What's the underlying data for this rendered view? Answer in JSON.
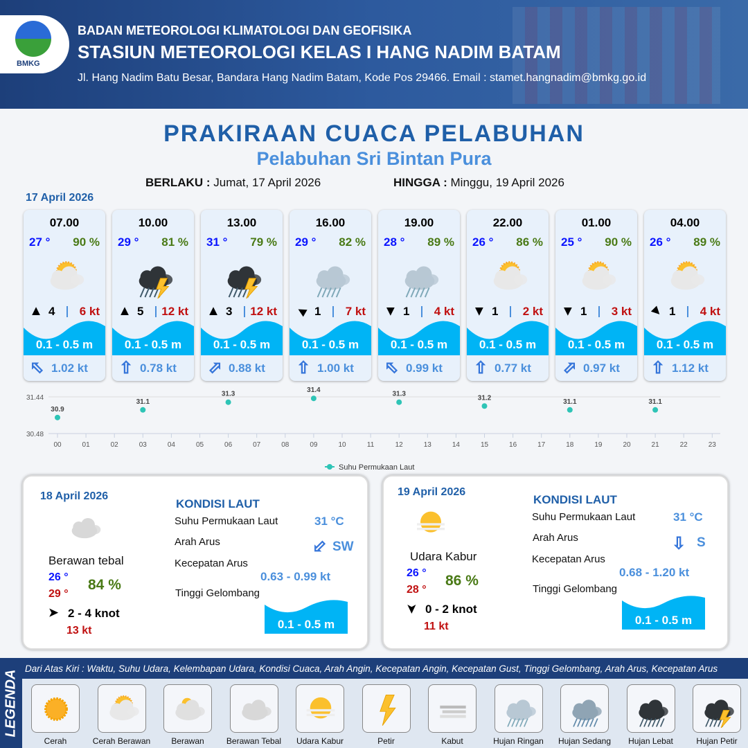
{
  "header": {
    "org": "BADAN METEOROLOGI KLIMATOLOGI DAN GEOFISIKA",
    "station": "STASIUN METEOROLOGI KELAS I HANG NADIM BATAM",
    "address": "Jl. Hang Nadim Batu Besar, Bandara Hang Nadim Batam, Kode Pos 29466. Email : stamet.hangnadim@bmkg.go.id",
    "logo_text": "BMKG"
  },
  "title": "PRAKIRAAN CUACA PELABUHAN",
  "subtitle": "Pelabuhan Sri Bintan Pura",
  "validity": {
    "from_label": "BERLAKU :",
    "from": "Jumat, 17 April 2026",
    "to_label": "HINGGA :",
    "to": "Minggu, 19 April 2026"
  },
  "day1": {
    "date": "17 April 2026",
    "cards": [
      {
        "time": "07.00",
        "temp": "27 °",
        "hum": "90 %",
        "icon": "cerah-berawan",
        "wind_dir_deg": 0,
        "wind": "4",
        "gust": "6 kt",
        "wave": "0.1 - 0.5 m",
        "cur_dir_deg": -45,
        "cur": "1.02 kt"
      },
      {
        "time": "10.00",
        "temp": "29 °",
        "hum": "81 %",
        "icon": "hujan-petir",
        "wind_dir_deg": 0,
        "wind": "5",
        "gust": "12 kt",
        "wave": "0.1 - 0.5 m",
        "cur_dir_deg": 0,
        "cur": "0.78 kt"
      },
      {
        "time": "13.00",
        "temp": "31 °",
        "hum": "79 %",
        "icon": "hujan-petir",
        "wind_dir_deg": 0,
        "wind": "3",
        "gust": "12 kt",
        "wave": "0.1 - 0.5 m",
        "cur_dir_deg": 45,
        "cur": "0.88 kt"
      },
      {
        "time": "16.00",
        "temp": "29 °",
        "hum": "82 %",
        "icon": "hujan-ringan",
        "wind_dir_deg": -60,
        "wind": "1",
        "gust": "7 kt",
        "wave": "0.1 - 0.5 m",
        "cur_dir_deg": 0,
        "cur": "1.00 kt"
      },
      {
        "time": "19.00",
        "temp": "28 °",
        "hum": "89 %",
        "icon": "hujan-ringan",
        "wind_dir_deg": 180,
        "wind": "1",
        "gust": "4 kt",
        "wave": "0.1 - 0.5 m",
        "cur_dir_deg": -45,
        "cur": "0.99 kt"
      },
      {
        "time": "22.00",
        "temp": "26 °",
        "hum": "86 %",
        "icon": "cerah-berawan",
        "wind_dir_deg": 180,
        "wind": "1",
        "gust": "2 kt",
        "wave": "0.1 - 0.5 m",
        "cur_dir_deg": 0,
        "cur": "0.77 kt"
      },
      {
        "time": "01.00",
        "temp": "25 °",
        "hum": "90 %",
        "icon": "cerah-berawan",
        "wind_dir_deg": 180,
        "wind": "1",
        "gust": "3 kt",
        "wave": "0.1 - 0.5 m",
        "cur_dir_deg": 45,
        "cur": "0.97 kt"
      },
      {
        "time": "04.00",
        "temp": "26 °",
        "hum": "89 %",
        "icon": "cerah-berawan",
        "wind_dir_deg": 135,
        "wind": "1",
        "gust": "4 kt",
        "wave": "0.1 - 0.5 m",
        "cur_dir_deg": 0,
        "cur": "1.12 kt"
      }
    ]
  },
  "chart_data": {
    "type": "scatter",
    "x": [
      "00",
      "03",
      "06",
      "09",
      "12",
      "15",
      "18",
      "21"
    ],
    "values": [
      30.9,
      31.1,
      31.3,
      31.4,
      31.3,
      31.2,
      31.1,
      31.1
    ],
    "x_ticks": [
      "00",
      "01",
      "02",
      "03",
      "04",
      "05",
      "06",
      "07",
      "08",
      "09",
      "10",
      "11",
      "12",
      "13",
      "14",
      "15",
      "16",
      "17",
      "18",
      "19",
      "20",
      "21",
      "22",
      "23"
    ],
    "y_ticks": [
      "31.44",
      "30.48"
    ],
    "ylim": [
      30.48,
      31.44
    ],
    "series_name": "Suhu Permukaan Laut",
    "color": "#2ec4b6",
    "legend": "bottom",
    "grid": true
  },
  "panels": [
    {
      "date": "18 April 2026",
      "condition": "Berawan tebal",
      "tmin": "26 °",
      "tmax": "29 °",
      "hum": "84 %",
      "wind": "2  - 4 knot",
      "gust": "13 kt",
      "wind_dir_deg": 90,
      "kondisi": "KONDISI LAUT",
      "sst_label": "Suhu Permukaan Laut",
      "sst": "31 °C",
      "arus_label": "Arah Arus",
      "arus": "SW",
      "arus_deg": -135,
      "kec_label": "Kecepatan Arus",
      "kec": "0.63  - 0.99 kt",
      "tg_label": "Tinggi Gelombang",
      "tg": "0.1 - 0.5 m",
      "icon": "berawan-tebal"
    },
    {
      "date": "19 April 2026",
      "condition": "Udara Kabur",
      "tmin": "26 °",
      "tmax": "28 °",
      "hum": "86 %",
      "wind": "0  - 2 knot",
      "gust": "11 kt",
      "wind_dir_deg": 180,
      "kondisi": "KONDISI LAUT",
      "sst_label": "Suhu Permukaan Laut",
      "sst": "31 °C",
      "arus_label": "Arah Arus",
      "arus": "S",
      "arus_deg": 180,
      "kec_label": "Kecepatan Arus",
      "kec": "0.68  - 1.20 kt",
      "tg_label": "Tinggi Gelombang",
      "tg": "0.1 - 0.5 m",
      "icon": "udara-kabur"
    }
  ],
  "legend": {
    "title": "LEGENDA",
    "description": "Dari Atas Kiri : Waktu, Suhu Udara, Kelembapan Udara, Kondisi Cuaca, Arah Angin, Kecepatan Angin, Kecepatan Gust, Tinggi Gelombang, Arah Arus, Kecepatan Arus",
    "items": [
      {
        "label": "Cerah",
        "icon": "cerah"
      },
      {
        "label": "Cerah Berawan",
        "icon": "cerah-berawan"
      },
      {
        "label": "Berawan",
        "icon": "berawan"
      },
      {
        "label": "Berawan Tebal",
        "icon": "berawan-tebal"
      },
      {
        "label": "Udara Kabur",
        "icon": "udara-kabur"
      },
      {
        "label": "Petir",
        "icon": "petir"
      },
      {
        "label": "Kabut",
        "icon": "kabut"
      },
      {
        "label": "Hujan Ringan",
        "icon": "hujan-ringan"
      },
      {
        "label": "Hujan Sedang",
        "icon": "hujan-sedang"
      },
      {
        "label": "Hujan Lebat",
        "icon": "hujan-lebat"
      },
      {
        "label": "Hujan Petir",
        "icon": "hujan-petir"
      }
    ]
  }
}
